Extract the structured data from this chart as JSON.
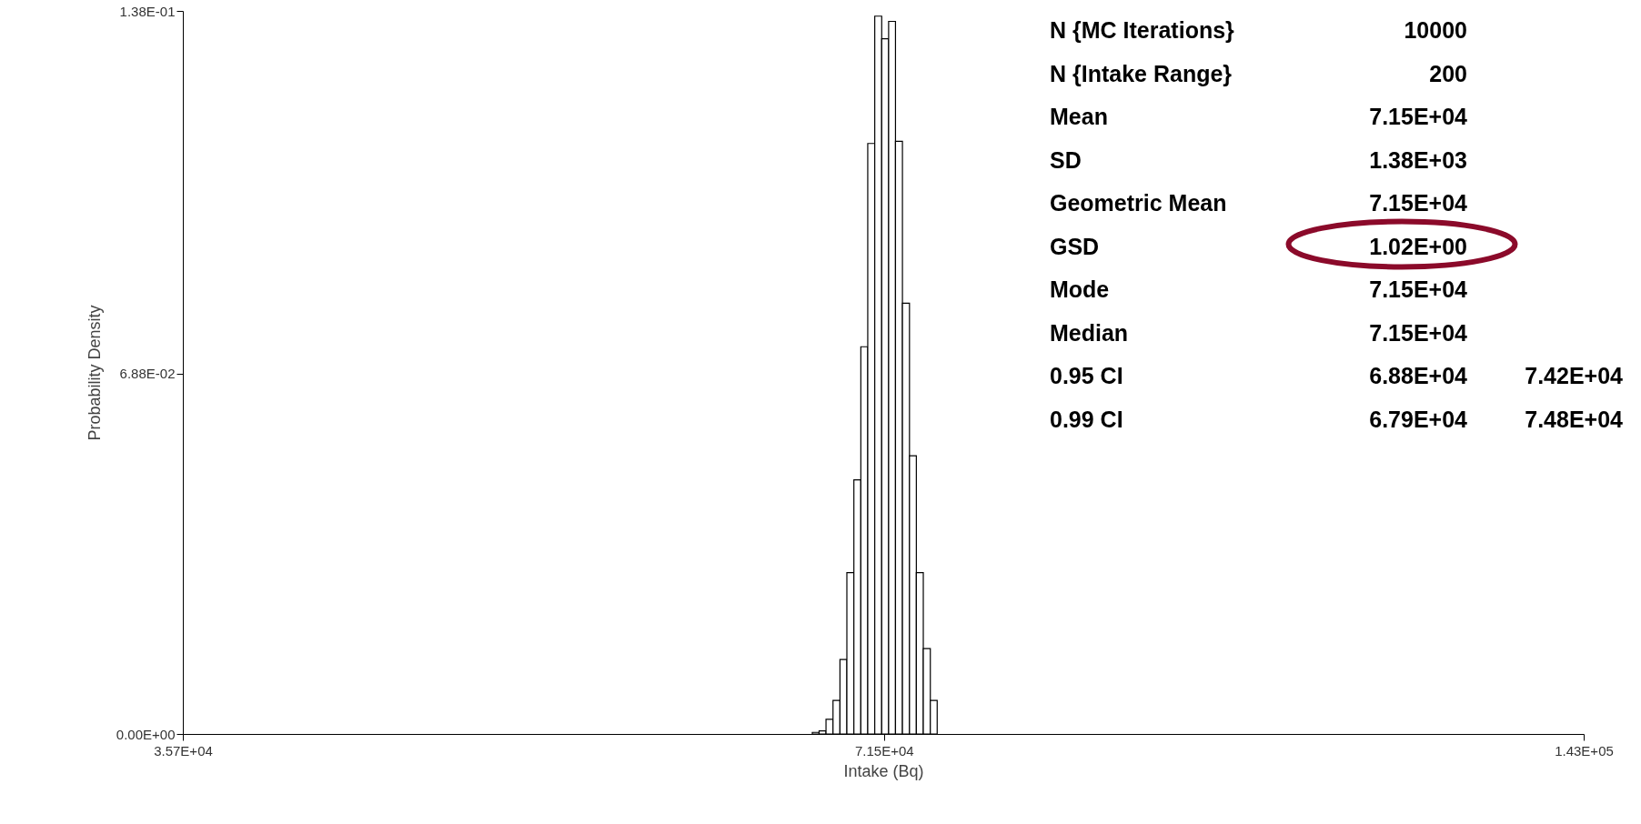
{
  "chart_data": {
    "type": "histogram",
    "xlabel": "Intake (Bq)",
    "ylabel": "Probability Density",
    "log": "x",
    "bins": [
      66600,
      67050,
      67510,
      67980,
      68450,
      68920,
      69400,
      69880,
      70360,
      70850,
      71340,
      71830,
      72320,
      72820,
      73330,
      73830,
      74340,
      74860,
      75370
    ],
    "values": [
      0.0003,
      0.0006,
      0.0028,
      0.0064,
      0.0142,
      0.0308,
      0.0485,
      0.0739,
      0.1127,
      0.137,
      0.1327,
      0.136,
      0.1131,
      0.0822,
      0.0531,
      0.0308,
      0.0163,
      0.0064
    ],
    "color": "#ffffff",
    "xlim": [
      35700,
      143000
    ],
    "xticks": [
      {
        "value": 35700,
        "label": "3.57E+04"
      },
      {
        "value": 71500,
        "label": "7.15E+04"
      },
      {
        "value": 143000,
        "label": "1.43E+05"
      }
    ],
    "ylim": [
      0,
      0.138
    ],
    "yticks": [
      {
        "value": 0,
        "label": "0.00E+00"
      },
      {
        "value": 0.0688,
        "label": "6.88E-02"
      },
      {
        "value": 0.138,
        "label": "1.38E-01"
      }
    ],
    "grid": false,
    "annotations": [
      "N {MC Iterations}\t10000",
      "N {Intake Range}\t200",
      "Mean\t7.15E+04",
      "SD\t1.38E+03",
      "Geometric Mean\t7.15E+04",
      "GSD\t1.02E+00",
      "Mode\t7.15E+04",
      "Median\t7.15E+04",
      "0.95 CI\t6.88E+04\t7.42E+04",
      "0.99 CI\t6.79E+04\t7.48E+04"
    ]
  }
}
